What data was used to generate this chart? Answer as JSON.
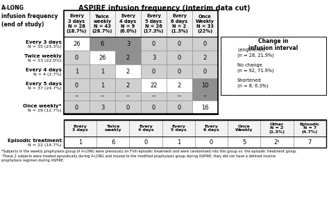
{
  "title": "ASPIRE infusion frequency (interim data cut)",
  "col_headers": [
    "Every\n3 days\nN = 28\n(18.7%)",
    "Twice\nweekly\nN = 43\n(28.7%)",
    "Every\n4 days\nN = 9\n(6.0%)",
    "Every\n5 days\nN = 26\n(17.3%)",
    "Every\n6 days\nN = 2\n(1.3%)",
    "Once\nWeekly\nN = 33\n(22%)"
  ],
  "col_headers_ep": [
    "Every\n3 days",
    "Twice\nweekly",
    "Every\n4 days",
    "Every\n5 days",
    "Every\n6 days",
    "Once\nWeekly",
    "Other\nN = 2\n(1.3%)",
    "Episodic\nN = 7\n(4.7%)"
  ],
  "row_labels": [
    "Every 3 days",
    "Twice weekly",
    "Every 4 days",
    "Every 5 days",
    "",
    "Once weekly*"
  ],
  "row_sublabels": [
    "N = 35 (23.3%)",
    "N = 33 (22.0%)",
    "N = 4 (2.7%)",
    "N = 37 (24.7%)",
    "",
    "N = 19 (12.7%)"
  ],
  "ep_row_label": "Episodic treatment",
  "ep_row_sublabel": "N = 22 (14.7%)",
  "main_data": [
    [
      26,
      6,
      3,
      0,
      0,
      0
    ],
    [
      0,
      26,
      2,
      3,
      0,
      2
    ],
    [
      1,
      1,
      2,
      0,
      0,
      0
    ],
    [
      0,
      1,
      2,
      22,
      2,
      10
    ],
    [
      "--",
      "--",
      "--",
      "--",
      "--",
      "--"
    ],
    [
      0,
      3,
      0,
      0,
      0,
      16
    ]
  ],
  "ep_data": [
    1,
    6,
    0,
    1,
    0,
    5,
    "2¹",
    7
  ],
  "cell_colors": [
    [
      "white",
      "dark",
      "dark",
      "light",
      "light",
      "light"
    ],
    [
      "light",
      "white",
      "dark",
      "light",
      "light",
      "light"
    ],
    [
      "light",
      "light",
      "white",
      "light",
      "light",
      "light"
    ],
    [
      "light",
      "light",
      "light",
      "white",
      "white",
      "dark"
    ],
    [
      "light",
      "light",
      "light",
      "light",
      "light",
      "dark"
    ],
    [
      "light",
      "light",
      "light",
      "light",
      "light",
      "white"
    ]
  ],
  "color_white": "#ffffff",
  "color_dark": "#909090",
  "color_light": "#d0d0d0",
  "color_bg": "#f2f2f2",
  "legend_title": "Change in\ninfusion interval",
  "legend_items": [
    {
      "label": "Lengthened\n(n = 28, 21.9%)",
      "color": "#909090"
    },
    {
      "label": "No change\n(n = 92, 71.9%)",
      "color": "#ffffff"
    },
    {
      "label": "Shortened\n(n = 8, 6.3%)",
      "color": "#d0d0d0"
    }
  ],
  "fn1": "*Subjects in the weekly prophylaxis group of A-LONG were previously on FVIII episodic treatment and were randomised into this group vs. the episodic treatment group.",
  "fn2": "¹These 2 subjects were treated episodically during A-LONG and moved to the modified prophylaxis group during ASPIRE; they did not have a defined routine",
  "fn3": "prophylaxis regimen during ASPIRE."
}
